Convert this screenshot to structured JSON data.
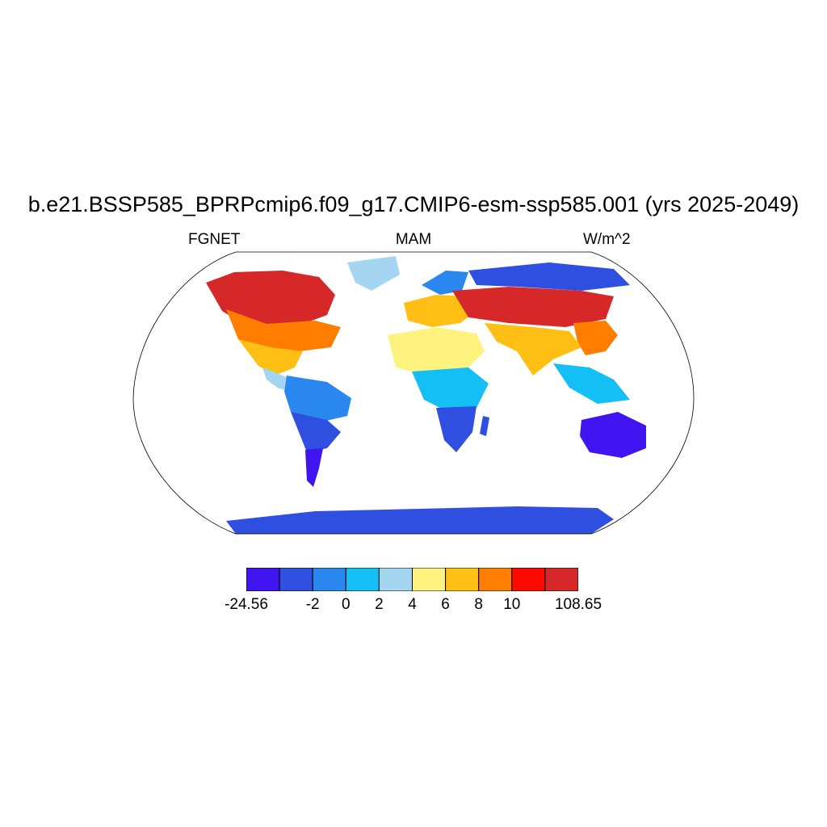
{
  "title": "b.e21.BSSP585_BPRPcmip6.f09_g17.CMIP6-esm-ssp585.001 (yrs 2025-2049)",
  "subtitle": {
    "left": "FGNET",
    "center": "MAM",
    "right": "W/m^2"
  },
  "colorbar": {
    "colors": [
      "#3f14f0",
      "#2f4fe0",
      "#2a87f0",
      "#14bff5",
      "#a4d6f2",
      "#fff27e",
      "#ffbf14",
      "#ff7e00",
      "#ff0a00",
      "#d62828"
    ],
    "labels": [
      "-24.56",
      "",
      "-2",
      "0",
      "2",
      "4",
      "6",
      "8",
      "10",
      "",
      "108.65"
    ]
  },
  "map": {
    "projection": "robinson",
    "ocean_color": "#ffffff",
    "land_palette": [
      "#3f14f0",
      "#2f4fe0",
      "#2a87f0",
      "#14bff5",
      "#a4d6f2",
      "#fff27e",
      "#ffbf14",
      "#ff7e00",
      "#ff0a00",
      "#d62828"
    ]
  }
}
